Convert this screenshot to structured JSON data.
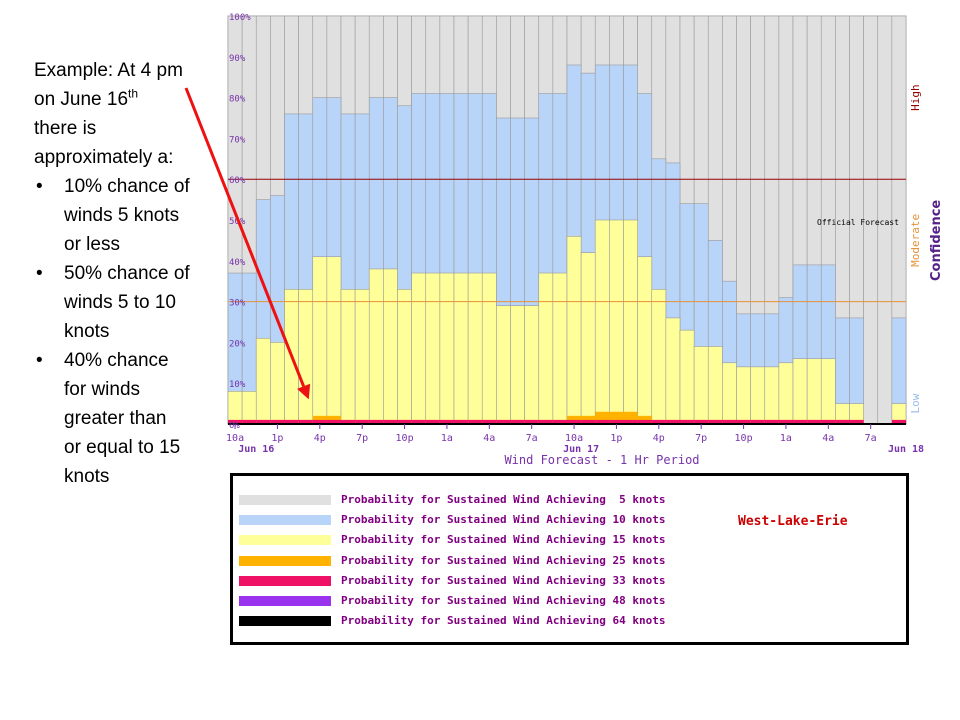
{
  "annotation": {
    "lines": [
      "Example: At 4 pm",
      "on June 16",
      "there is",
      "approximately a:"
    ],
    "superscript": "th",
    "bullet_glyph": "•",
    "bullets": [
      [
        "10% chance of",
        "winds 5 knots",
        "or less"
      ],
      [
        "50% chance of",
        "winds 5 to 10",
        "knots"
      ],
      [
        "40% chance",
        "for winds",
        "greater than",
        "or equal to 15",
        "knots"
      ]
    ]
  },
  "chart_data": {
    "type": "bar",
    "title": "",
    "xlabel": "Wind Forecast - 1 Hr Period",
    "ylabel": "",
    "ylim": [
      0,
      100
    ],
    "y_ticks": [
      "0%",
      "10%",
      "20%",
      "30%",
      "40%",
      "50%",
      "60%",
      "70%",
      "80%",
      "90%",
      "100%"
    ],
    "x_tick_labels": [
      "10a",
      "1p",
      "4p",
      "7p",
      "10p",
      "1a",
      "4a",
      "7a",
      "10a",
      "1p",
      "4p",
      "7p",
      "10p",
      "1a",
      "4a",
      "7a"
    ],
    "x_tick_hours": [
      0,
      3,
      6,
      9,
      12,
      15,
      18,
      21,
      24,
      27,
      30,
      33,
      36,
      39,
      42,
      45
    ],
    "date_labels": [
      {
        "hour": 1.5,
        "label": "Jun 16"
      },
      {
        "hour": 24.5,
        "label": "Jun 17"
      },
      {
        "hour": 47.5,
        "label": "Jun 18"
      }
    ],
    "hours": 48,
    "bars_start_hour": 0,
    "confidence_label": "Confidence",
    "confidence_levels": [
      {
        "label": "Low",
        "value": 5,
        "color": "#99bbee"
      },
      {
        "label": "Moderate",
        "value": 45,
        "color": "#e69138"
      },
      {
        "label": "High",
        "value": 80,
        "color": "#990000"
      }
    ],
    "thresholds": [
      {
        "value": 30,
        "color": "#e69138"
      },
      {
        "value": 60,
        "color": "#990000"
      }
    ],
    "official_forecast_label": "Official Forecast",
    "official_forecast_value": 50,
    "series": [
      {
        "name": "Probability for Sustained Wind Achieving  5 knots",
        "color": "#e0e0e0",
        "values": [
          100,
          100,
          100,
          100,
          100,
          100,
          100,
          100,
          100,
          100,
          100,
          100,
          100,
          100,
          100,
          100,
          100,
          100,
          100,
          100,
          100,
          100,
          100,
          100,
          100,
          100,
          100,
          100,
          100,
          100,
          100,
          100,
          100,
          100,
          100,
          100,
          100,
          100,
          100,
          100,
          100,
          100,
          100,
          100,
          100,
          100,
          100,
          100
        ]
      },
      {
        "name": "Probability for Sustained Wind Achieving 10 knots",
        "color": "#b8d4f8",
        "values": [
          37,
          37,
          55,
          56,
          76,
          76,
          80,
          80,
          76,
          76,
          80,
          80,
          78,
          81,
          81,
          81,
          81,
          81,
          81,
          75,
          75,
          75,
          81,
          81,
          88,
          86,
          88,
          88,
          88,
          81,
          65,
          64,
          54,
          54,
          45,
          35,
          27,
          27,
          27,
          31,
          39,
          39,
          39,
          26,
          26,
          0,
          0,
          26
        ]
      },
      {
        "name": "Probability for Sustained Wind Achieving 15 knots",
        "color": "#ffff99",
        "values": [
          8,
          8,
          21,
          20,
          33,
          33,
          41,
          41,
          33,
          33,
          38,
          38,
          33,
          37,
          37,
          37,
          37,
          37,
          37,
          29,
          29,
          29,
          37,
          37,
          46,
          42,
          50,
          50,
          50,
          41,
          33,
          26,
          23,
          19,
          19,
          15,
          14,
          14,
          14,
          15,
          16,
          16,
          16,
          5,
          5,
          0,
          0,
          5
        ]
      },
      {
        "name": "Probability for Sustained Wind Achieving 25 knots",
        "color": "#ffb300",
        "values": [
          1,
          1,
          1,
          1,
          1,
          1,
          2,
          2,
          1,
          1,
          1,
          1,
          1,
          1,
          1,
          1,
          1,
          1,
          1,
          1,
          1,
          1,
          1,
          1,
          2,
          2,
          3,
          3,
          3,
          2,
          1,
          1,
          1,
          1,
          1,
          1,
          1,
          1,
          1,
          1,
          1,
          1,
          1,
          1,
          1,
          0,
          0,
          1
        ]
      },
      {
        "name": "Probability for Sustained Wind Achieving 33 knots",
        "color": "#ee1166",
        "values": [
          1,
          1,
          1,
          1,
          1,
          1,
          1,
          1,
          1,
          1,
          1,
          1,
          1,
          1,
          1,
          1,
          1,
          1,
          1,
          1,
          1,
          1,
          1,
          1,
          1,
          1,
          1,
          1,
          1,
          1,
          1,
          1,
          1,
          1,
          1,
          1,
          1,
          1,
          1,
          1,
          1,
          1,
          1,
          1,
          1,
          0,
          0,
          1
        ]
      },
      {
        "name": "Probability for Sustained Wind Achieving 48 knots",
        "color": "#9933ee",
        "values": [
          0,
          0,
          0,
          0,
          0,
          0,
          0,
          0,
          0,
          0,
          0,
          0,
          0,
          0,
          0,
          0,
          0,
          0,
          0,
          0,
          0,
          0,
          0,
          0,
          0,
          0,
          0,
          0,
          0,
          0,
          0,
          0,
          0,
          0,
          0,
          0,
          0,
          0,
          0,
          0,
          0,
          0,
          0,
          0,
          0,
          0,
          0,
          0
        ]
      },
      {
        "name": "Probability for Sustained Wind Achieving 64 knots",
        "color": "#000000",
        "values": [
          0,
          0,
          0,
          0,
          0,
          0,
          0,
          0,
          0,
          0,
          0,
          0,
          0,
          0,
          0,
          0,
          0,
          0,
          0,
          0,
          0,
          0,
          0,
          0,
          0,
          0,
          0,
          0,
          0,
          0,
          0,
          0,
          0,
          0,
          0,
          0,
          0,
          0,
          0,
          0,
          0,
          0,
          0,
          0,
          0,
          0,
          0,
          0
        ]
      }
    ],
    "legend_region": "West-Lake-Erie",
    "legend_placement": "bottom",
    "arrow": {
      "color": "#ee1111",
      "target_hour": 6,
      "target_value": 8
    }
  }
}
